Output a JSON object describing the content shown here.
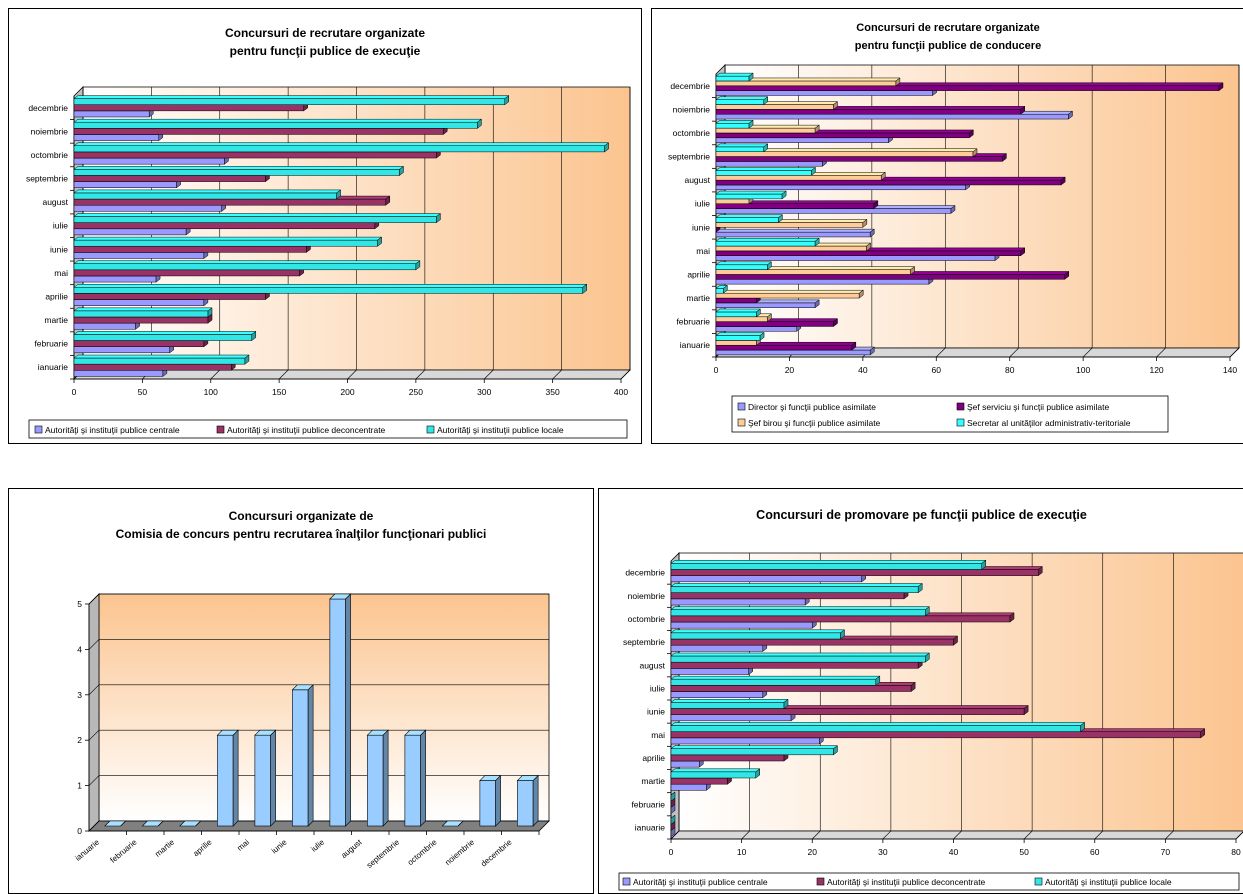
{
  "colors": {
    "centrale": "#9999ff",
    "deconcentrate": "#993366",
    "locale": "#33e6e6",
    "director": "#9999ff",
    "sef_serviciu": "#800080",
    "sef_birou": "#ffcc99",
    "secretar": "#33ffff",
    "single": "#99ccff",
    "bg_light": "#ffffff",
    "bg_dark": "#fbc48f"
  },
  "chart_data": [
    {
      "type": "bar",
      "orientation": "horizontal",
      "title": "Concursuri de recrutare organizate",
      "subtitle": "pentru funcţii publice de execuţie",
      "categories": [
        "ianuarie",
        "februarie",
        "martie",
        "aprilie",
        "mai",
        "iunie",
        "iulie",
        "august",
        "septembrie",
        "octombrie",
        "noiembrie",
        "decembrie"
      ],
      "ticks": [
        "0",
        "50",
        "100",
        "150",
        "200",
        "250",
        "300",
        "350",
        "400"
      ],
      "xlim": [
        0,
        400
      ],
      "series": [
        {
          "name": "Autorităţi şi instituţii publice centrale",
          "color_key": "centrale",
          "values": [
            65,
            70,
            45,
            95,
            60,
            95,
            82,
            108,
            75,
            110,
            62,
            55
          ]
        },
        {
          "name": "Autorităţi şi instituţii publice deconcentrate",
          "color_key": "deconcentrate",
          "values": [
            115,
            95,
            98,
            140,
            165,
            170,
            220,
            228,
            140,
            265,
            270,
            168
          ]
        },
        {
          "name": "Autorităţi şi instituţii publice locale",
          "color_key": "locale",
          "values": [
            125,
            130,
            98,
            372,
            250,
            222,
            265,
            192,
            238,
            388,
            295,
            315
          ]
        }
      ],
      "legend": "bottom"
    },
    {
      "type": "bar",
      "orientation": "horizontal",
      "title": "Concursuri de recrutare organizate",
      "subtitle": "pentru funcţii publice de conducere",
      "categories": [
        "ianuarie",
        "februarie",
        "martie",
        "aprilie",
        "mai",
        "iunie",
        "iulie",
        "august",
        "septembrie",
        "octombrie",
        "noiembrie",
        "decembrie"
      ],
      "ticks": [
        "0",
        "20",
        "40",
        "60",
        "80",
        "100",
        "120",
        "140"
      ],
      "xlim": [
        0,
        140
      ],
      "series": [
        {
          "name": "Director şi funcţii publice asimilate",
          "color_key": "director",
          "values": [
            42,
            22,
            27,
            58,
            76,
            42,
            64,
            68,
            29,
            47,
            96,
            59
          ]
        },
        {
          "name": "Şef serviciu şi funcţii publice asimilate",
          "color_key": "sef_serviciu",
          "values": [
            37,
            32,
            11,
            95,
            83,
            0,
            43,
            94,
            78,
            69,
            83,
            137
          ]
        },
        {
          "name": "Şef birou şi funcţii publice asimilate",
          "color_key": "sef_birou",
          "values": [
            11,
            14,
            39,
            53,
            41,
            40,
            9,
            45,
            70,
            27,
            32,
            49
          ]
        },
        {
          "name": "Secretar al unităţilor administrativ-teritoriale",
          "color_key": "secretar",
          "values": [
            12,
            11,
            2,
            14,
            27,
            17,
            18,
            26,
            13,
            9,
            13,
            9
          ]
        }
      ],
      "legend": "bottom"
    },
    {
      "type": "bar",
      "orientation": "vertical",
      "title": "Concursuri organizate de",
      "subtitle": "Comisia de concurs pentru recrutarea înalţilor funcţionari publici",
      "categories": [
        "ianuarie",
        "februarie",
        "martie",
        "aprilie",
        "mai",
        "iunie",
        "iulie",
        "august",
        "septembrie",
        "octombrie",
        "noiembrie",
        "decembrie"
      ],
      "ticks": [
        "0",
        "1",
        "2",
        "3",
        "4",
        "5"
      ],
      "ylim": [
        0,
        5
      ],
      "series": [
        {
          "name": "",
          "color_key": "single",
          "values": [
            0,
            0,
            0,
            2,
            2,
            3,
            5,
            2,
            2,
            0,
            1,
            1
          ]
        }
      ]
    },
    {
      "type": "bar",
      "orientation": "horizontal",
      "title": "Concursuri de promovare pe funcţii publice de execuţie",
      "subtitle": "",
      "categories": [
        "ianuarie",
        "februarie",
        "martie",
        "aprilie",
        "mai",
        "iunie",
        "iulie",
        "august",
        "septembrie",
        "octombrie",
        "noiembrie",
        "decembrie"
      ],
      "ticks": [
        "0",
        "10",
        "20",
        "30",
        "40",
        "50",
        "60",
        "70",
        "80"
      ],
      "xlim": [
        0,
        80
      ],
      "series": [
        {
          "name": "Autorităţi şi instituţii publice centrale",
          "color_key": "centrale",
          "values": [
            0,
            0,
            5,
            4,
            21,
            17,
            13,
            11,
            13,
            20,
            19,
            27
          ]
        },
        {
          "name": "Autorităţi şi instituţii publice deconcentrate",
          "color_key": "deconcentrate",
          "values": [
            0,
            0,
            8,
            16,
            75,
            50,
            34,
            35,
            40,
            48,
            33,
            52
          ]
        },
        {
          "name": "Autorităţi şi instituţii publice locale",
          "color_key": "locale",
          "values": [
            0,
            0,
            12,
            23,
            58,
            16,
            29,
            36,
            24,
            36,
            35,
            44
          ]
        }
      ],
      "legend": "bottom"
    }
  ]
}
